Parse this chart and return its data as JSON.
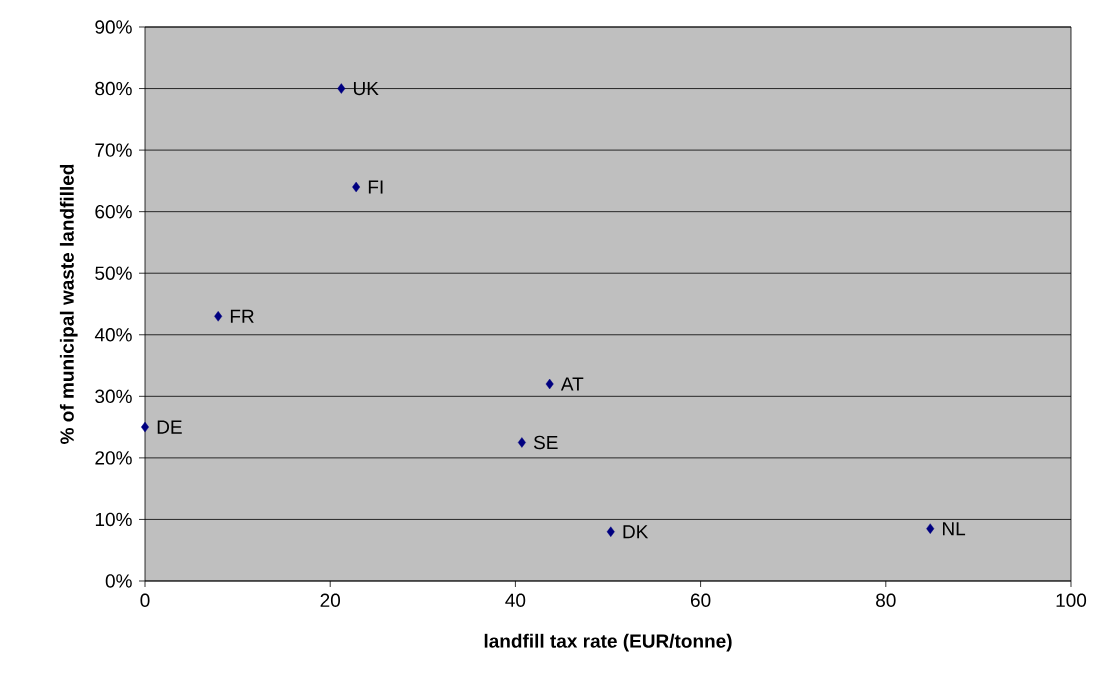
{
  "chart_data": {
    "type": "scatter",
    "xlabel": "landfill tax rate (EUR/tonne)",
    "ylabel": "% of municipal waste landfilled",
    "series": [
      {
        "color": "#000080",
        "x": [
          21.2,
          22.8,
          7.9,
          43.7,
          0,
          40.7,
          50.3,
          84.8
        ],
        "values": [
          80,
          64,
          43,
          32,
          25,
          22.5,
          8,
          8.5
        ]
      }
    ],
    "annotations": [
      {
        "text": "UK",
        "x": 21.2,
        "y": 80
      },
      {
        "text": "FI",
        "x": 22.8,
        "y": 64
      },
      {
        "text": "FR",
        "x": 7.9,
        "y": 43
      },
      {
        "text": "AT",
        "x": 43.7,
        "y": 32
      },
      {
        "text": "DE",
        "x": 0,
        "y": 25
      },
      {
        "text": "SE",
        "x": 40.7,
        "y": 22.5
      },
      {
        "text": "DK",
        "x": 50.3,
        "y": 8
      },
      {
        "text": "NL",
        "x": 84.8,
        "y": 8.5
      }
    ],
    "xlim": [
      0,
      100
    ],
    "xticks": [
      0,
      20,
      40,
      60,
      80,
      100
    ],
    "ylim": [
      0,
      90
    ],
    "yticks": [
      {
        "value": 0,
        "label": "0%"
      },
      {
        "value": 10,
        "label": "10%"
      },
      {
        "value": 20,
        "label": "20%"
      },
      {
        "value": 30,
        "label": "30%"
      },
      {
        "value": 40,
        "label": "40%"
      },
      {
        "value": 50,
        "label": "50%"
      },
      {
        "value": 60,
        "label": "60%"
      },
      {
        "value": 70,
        "label": "70%"
      },
      {
        "value": 80,
        "label": "80%"
      },
      {
        "value": 90,
        "label": "90%"
      }
    ],
    "grid": "y",
    "marker": "diamond"
  }
}
